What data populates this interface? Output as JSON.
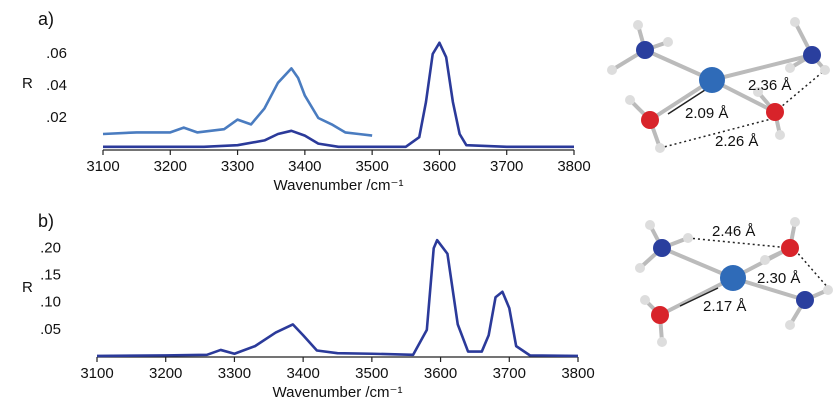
{
  "chart_data": [
    {
      "type": "line",
      "label": "a)",
      "y_label": "R",
      "x_label": "Wavenumber /cm⁻¹",
      "xlim": [
        3100,
        3800
      ],
      "xticks": [
        3100,
        3200,
        3300,
        3400,
        3500,
        3600,
        3700,
        3800
      ],
      "ylim": [
        0,
        0.075
      ],
      "yticks": [
        {
          "value": 0.02,
          "label": ".02"
        },
        {
          "value": 0.04,
          "label": ".04"
        },
        {
          "value": 0.06,
          "label": ".06"
        }
      ],
      "series": [
        {
          "color": "#4a7cc0",
          "x": [
            3100,
            3150,
            3200,
            3220,
            3240,
            3280,
            3300,
            3320,
            3340,
            3360,
            3380,
            3390,
            3400,
            3420,
            3440,
            3460,
            3480,
            3500
          ],
          "values": [
            0.01,
            0.011,
            0.011,
            0.014,
            0.011,
            0.013,
            0.019,
            0.016,
            0.026,
            0.042,
            0.051,
            0.045,
            0.034,
            0.02,
            0.016,
            0.011,
            0.01,
            0.009
          ]
        },
        {
          "color": "#2b3a9a",
          "x": [
            3100,
            3150,
            3200,
            3250,
            3300,
            3340,
            3360,
            3380,
            3400,
            3420,
            3450,
            3500,
            3550,
            3570,
            3580,
            3590,
            3600,
            3610,
            3620,
            3630,
            3640,
            3700,
            3800
          ],
          "values": [
            0.002,
            0.002,
            0.002,
            0.002,
            0.003,
            0.006,
            0.01,
            0.012,
            0.009,
            0.004,
            0.002,
            0.002,
            0.002,
            0.008,
            0.03,
            0.06,
            0.067,
            0.058,
            0.03,
            0.01,
            0.003,
            0.002,
            0.002
          ]
        }
      ]
    },
    {
      "type": "line",
      "label": "b)",
      "y_label": "R",
      "x_label": "Wavenumber /cm⁻¹",
      "xlim": [
        3100,
        3800
      ],
      "xticks": [
        3100,
        3200,
        3300,
        3400,
        3500,
        3600,
        3700,
        3800
      ],
      "ylim": [
        0,
        0.23
      ],
      "yticks": [
        {
          "value": 0.05,
          "label": ".05"
        },
        {
          "value": 0.1,
          "label": ".10"
        },
        {
          "value": 0.15,
          "label": ".15"
        },
        {
          "value": 0.2,
          "label": ".20"
        }
      ],
      "series": [
        {
          "color": "#2b3a9a",
          "x": [
            3100,
            3200,
            3260,
            3280,
            3300,
            3330,
            3360,
            3385,
            3400,
            3420,
            3450,
            3500,
            3560,
            3580,
            3590,
            3595,
            3610,
            3625,
            3640,
            3660,
            3670,
            3680,
            3690,
            3700,
            3710,
            3730,
            3800
          ],
          "values": [
            0.002,
            0.003,
            0.004,
            0.013,
            0.006,
            0.02,
            0.045,
            0.06,
            0.04,
            0.012,
            0.007,
            0.006,
            0.004,
            0.05,
            0.2,
            0.215,
            0.19,
            0.06,
            0.01,
            0.01,
            0.04,
            0.11,
            0.12,
            0.09,
            0.02,
            0.003,
            0.002
          ]
        }
      ]
    }
  ],
  "molecules": [
    {
      "distances": [
        "2.36 Å",
        "2.09 Å",
        "2.26 Å"
      ]
    },
    {
      "distances": [
        "2.46 Å",
        "2.30 Å",
        "2.17 Å"
      ]
    }
  ]
}
